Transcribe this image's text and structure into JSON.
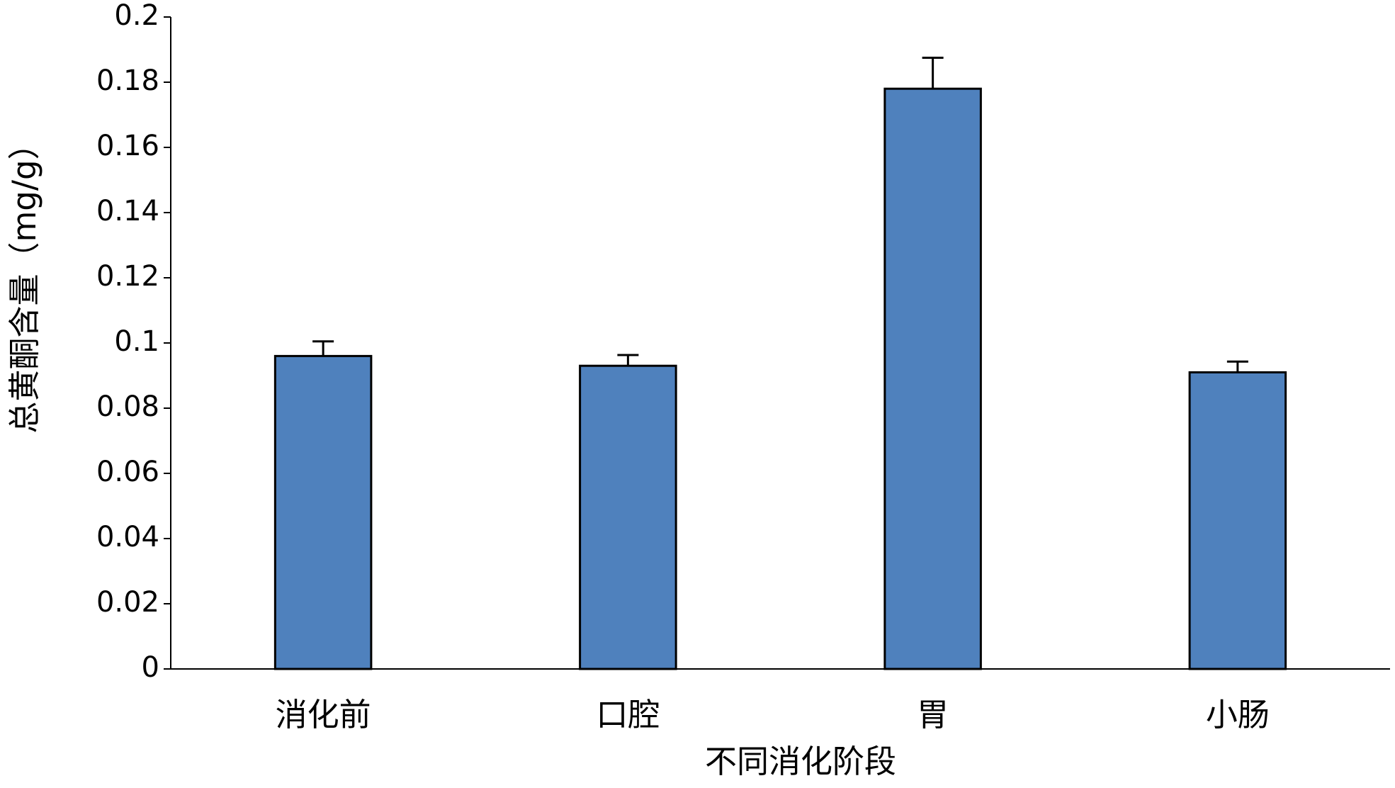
{
  "chart_data": {
    "type": "bar",
    "x_label": "不同消化阶段",
    "y_label": "总黄酮含量（mg/g）",
    "categories": [
      "消化前",
      "口腔",
      "胃",
      "小肠"
    ],
    "values": [
      0.096,
      0.093,
      0.178,
      0.091
    ],
    "errors": [
      0.0045,
      0.0033,
      0.0095,
      0.0033
    ],
    "color": "#4f81bd",
    "ylim": [
      0,
      0.2
    ],
    "yticks": [
      0,
      0.02,
      0.04,
      0.06,
      0.08,
      0.1,
      0.12,
      0.14,
      0.16,
      0.18,
      0.2
    ],
    "grid": false
  }
}
